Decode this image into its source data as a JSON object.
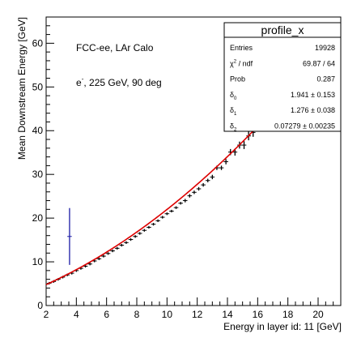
{
  "chart_data": {
    "type": "scatter",
    "title": "",
    "xlabel": "Energy in layer id: 11 [GeV]",
    "ylabel": "Mean Downstream Energy [GeV]",
    "xlim": [
      2,
      21.5
    ],
    "ylim": [
      0,
      66
    ],
    "x_ticks": [
      2,
      4,
      6,
      8,
      10,
      12,
      14,
      16,
      18,
      20
    ],
    "y_ticks": [
      0,
      10,
      20,
      30,
      40,
      50,
      60
    ],
    "grid": false,
    "annotations": [
      "FCC-ee, LAr Calo",
      "e",
      "-",
      ", 225 GeV, 90 deg"
    ],
    "stats_box": {
      "title": "profile_x",
      "rows": [
        {
          "label": "Entries",
          "value": "19928"
        },
        {
          "label": "χ",
          "sup": "2",
          "rest": " / ndf",
          "value": "69.87 / 64"
        },
        {
          "label": "Prob",
          "value": "0.287"
        },
        {
          "label": "δ",
          "sub": "0",
          "value": "1.941 ± 0.153"
        },
        {
          "label": "δ",
          "sub": "1",
          "value": "1.276 ± 0.038"
        },
        {
          "label": "δ",
          "sub": "2",
          "value": "0.07279 ± 0.00235"
        }
      ]
    },
    "fit": {
      "p0": 1.941,
      "p1": 1.276,
      "p2": 0.07279,
      "x_range": [
        2,
        16.9
      ],
      "color": "#dd0000"
    },
    "series": [
      {
        "color": "#000000",
        "x": [
          2.2,
          2.5,
          2.8,
          3.1,
          3.4,
          3.7,
          4.0,
          4.3,
          4.6,
          4.9,
          5.2,
          5.5,
          5.8,
          6.1,
          6.4,
          6.7,
          7.0,
          7.3,
          7.6,
          7.9,
          8.2,
          8.5,
          8.8,
          9.1,
          9.4,
          9.7,
          10.0,
          10.3,
          10.6,
          10.9,
          11.2,
          11.5,
          11.8,
          12.1,
          12.4,
          12.7,
          13.0,
          13.3,
          13.6,
          13.9,
          14.2,
          14.5,
          14.8,
          15.1,
          15.4,
          15.7,
          16.0,
          16.3
        ],
        "y": [
          5.1,
          5.5,
          6.0,
          6.5,
          7.0,
          7.4,
          8.0,
          8.5,
          9.0,
          9.5,
          10.2,
          10.7,
          11.3,
          11.9,
          12.5,
          13.1,
          13.8,
          14.4,
          15.1,
          15.8,
          16.5,
          17.2,
          17.9,
          18.6,
          19.4,
          20.2,
          21.0,
          21.6,
          22.4,
          23.4,
          24.0,
          25.1,
          25.9,
          26.7,
          27.6,
          28.6,
          29.4,
          31.5,
          31.5,
          32.9,
          35.1,
          35.1,
          36.7,
          36.7,
          38.8,
          39.6,
          40.9,
          41.7
        ],
        "yerr": [
          0.3,
          0.3,
          0.3,
          0.3,
          0.3,
          0.3,
          0.3,
          0.3,
          0.3,
          0.3,
          0.3,
          0.3,
          0.3,
          0.3,
          0.3,
          0.3,
          0.3,
          0.3,
          0.3,
          0.3,
          0.3,
          0.3,
          0.3,
          0.3,
          0.3,
          0.3,
          0.3,
          0.3,
          0.3,
          0.3,
          0.4,
          0.4,
          0.4,
          0.4,
          0.4,
          0.4,
          0.5,
          0.5,
          0.5,
          0.6,
          0.7,
          0.8,
          0.8,
          0.9,
          1.0,
          1.0,
          1.1,
          1.1
        ]
      },
      {
        "color": "#1a1aa6",
        "x": [
          3.55
        ],
        "y": [
          15.8
        ],
        "yerr": [
          6.5
        ]
      }
    ]
  }
}
